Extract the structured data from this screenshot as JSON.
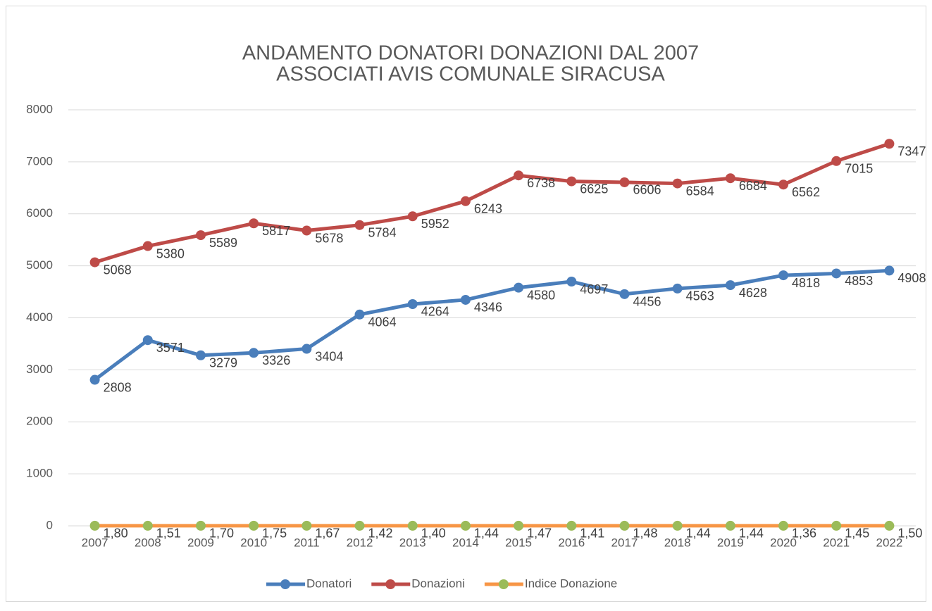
{
  "chart_data": {
    "type": "line",
    "title": "ANDAMENTO DONATORI DONAZIONI DAL 2007",
    "subtitle": "ASSOCIATI AVIS COMUNALE SIRACUSA",
    "categories": [
      "2007",
      "2008",
      "2009",
      "2010",
      "2011",
      "2012",
      "2013",
      "2014",
      "2015",
      "2016",
      "2017",
      "2018",
      "2019",
      "2020",
      "2021",
      "2022"
    ],
    "series": [
      {
        "name": "Donatori",
        "color": "#4a7ebb",
        "marker_color": "#4a7ebb",
        "values": [
          2808,
          3571,
          3279,
          3326,
          3404,
          4064,
          4264,
          4346,
          4580,
          4697,
          4456,
          4563,
          4628,
          4818,
          4853,
          4908
        ]
      },
      {
        "name": "Donazioni",
        "color": "#be4b48",
        "marker_color": "#be4b48",
        "values": [
          5068,
          5380,
          5589,
          5817,
          5678,
          5784,
          5952,
          6243,
          6738,
          6625,
          6606,
          6584,
          6684,
          6562,
          7015,
          7347
        ]
      },
      {
        "name": "Indice Donazione",
        "color": "#f79646",
        "marker_color": "#9bbb59",
        "values": [
          1.8,
          1.51,
          1.7,
          1.75,
          1.67,
          1.42,
          1.4,
          1.44,
          1.47,
          1.41,
          1.48,
          1.44,
          1.44,
          1.36,
          1.45,
          1.5
        ],
        "value_labels": [
          "1,80",
          "1,51",
          "1,70",
          "1,75",
          "1,67",
          "1,42",
          "1,40",
          "1,44",
          "1,47",
          "1,41",
          "1,48",
          "1,44",
          "1,44",
          "1,36",
          "1,45",
          "1,50"
        ]
      }
    ],
    "ylim": [
      0,
      8000
    ],
    "yticks": [
      0,
      1000,
      2000,
      3000,
      4000,
      5000,
      6000,
      7000,
      8000
    ],
    "grid": true,
    "legend": "bottom"
  }
}
